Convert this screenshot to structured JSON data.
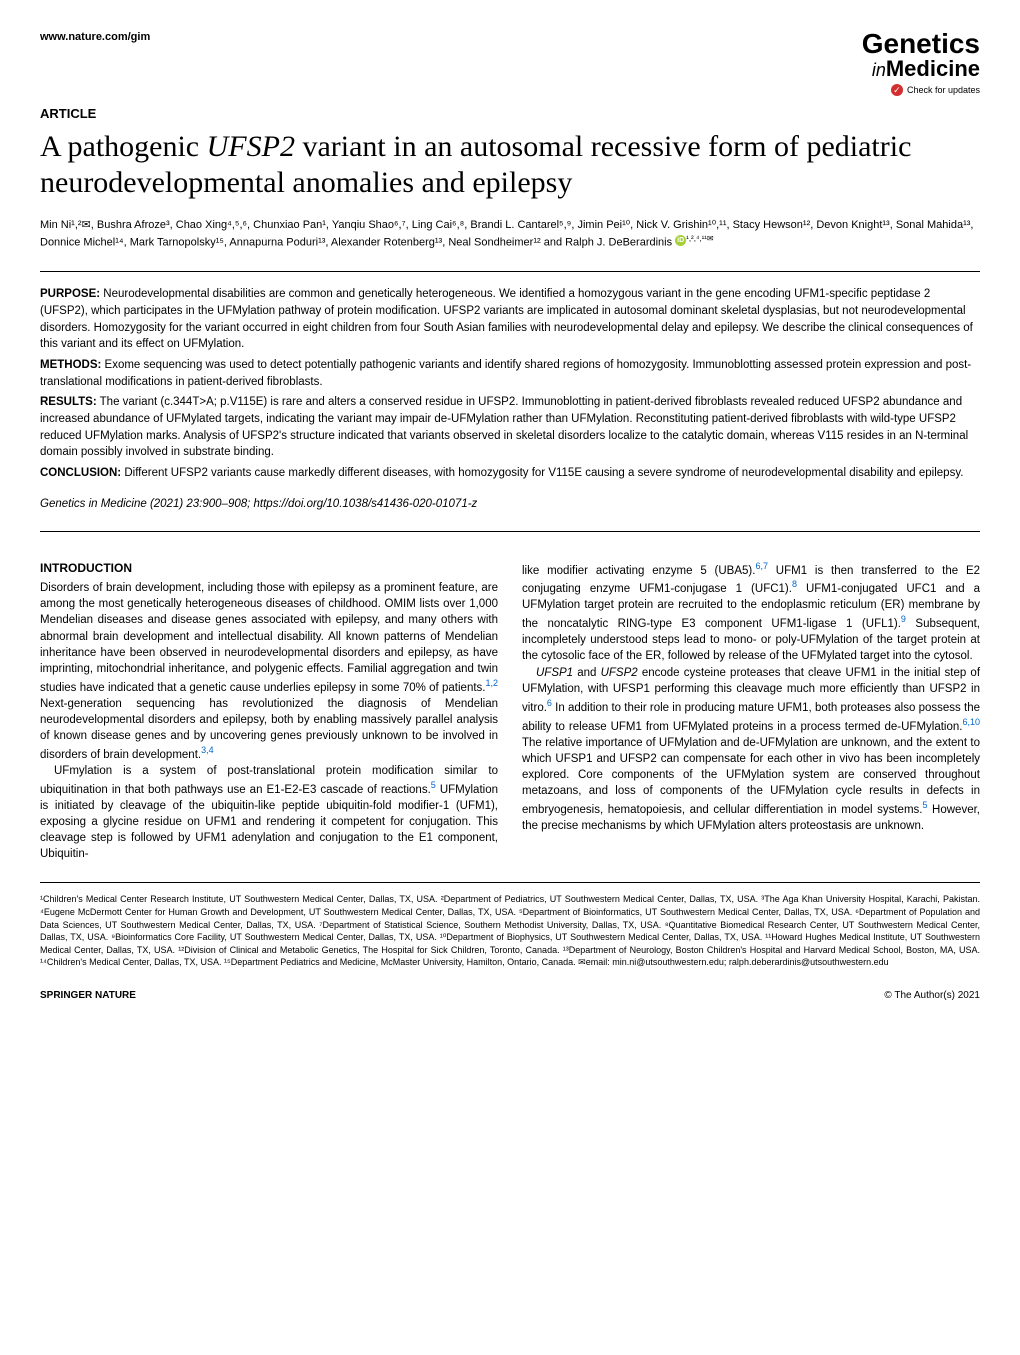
{
  "header": {
    "website": "www.nature.com/gim",
    "journal_line1": "Genetics",
    "journal_line2_in": "in",
    "journal_line2_med": "Medicine",
    "check_updates": "Check for updates"
  },
  "article": {
    "label": "ARTICLE",
    "title_pre": "A pathogenic ",
    "title_gene": "UFSP2",
    "title_post": " variant in an autosomal recessive form of pediatric neurodevelopmental anomalies and epilepsy"
  },
  "authors": {
    "line": "Min Ni¹,²✉, Bushra Afroze³, Chao Xing⁴,⁵,⁶, Chunxiao Pan¹, Yanqiu Shao⁶,⁷, Ling Cai⁶,⁸, Brandi L. Cantarel⁵,⁹, Jimin Pei¹⁰, Nick V. Grishin¹⁰,¹¹, Stacy Hewson¹², Devon Knight¹³, Sonal Mahida¹³, Donnice Michel¹⁴, Mark Tarnopolsky¹⁵, Annapurna Poduri¹³, Alexander Rotenberg¹³, Neal Sondheimer¹² and Ralph J. DeBerardinis"
  },
  "orcid_sup": "¹,²,⁴,¹¹✉",
  "abstract": {
    "purpose_label": "PURPOSE:",
    "purpose": " Neurodevelopmental disabilities are common and genetically heterogeneous. We identified a homozygous variant in the gene encoding UFM1-specific peptidase 2 (UFSP2), which participates in the UFMylation pathway of protein modification. UFSP2 variants are implicated in autosomal dominant skeletal dysplasias, but not neurodevelopmental disorders. Homozygosity for the variant occurred in eight children from four South Asian families with neurodevelopmental delay and epilepsy. We describe the clinical consequences of this variant and its effect on UFMylation.",
    "methods_label": "METHODS:",
    "methods": " Exome sequencing was used to detect potentially pathogenic variants and identify shared regions of homozygosity. Immunoblotting assessed protein expression and post-translational modifications in patient-derived fibroblasts.",
    "results_label": "RESULTS:",
    "results": " The variant (c.344T>A; p.V115E) is rare and alters a conserved residue in UFSP2. Immunoblotting in patient-derived fibroblasts revealed reduced UFSP2 abundance and increased abundance of UFMylated targets, indicating the variant may impair de-UFMylation rather than UFMylation. Reconstituting patient-derived fibroblasts with wild-type UFSP2 reduced UFMylation marks. Analysis of UFSP2's structure indicated that variants observed in skeletal disorders localize to the catalytic domain, whereas V115 resides in an N-terminal domain possibly involved in substrate binding.",
    "conclusion_label": "CONCLUSION:",
    "conclusion": " Different UFSP2 variants cause markedly different diseases, with homozygosity for V115E causing a severe syndrome of neurodevelopmental disability and epilepsy.",
    "citation": "Genetics in Medicine (2021) 23:900–908; https://doi.org/10.1038/s41436-020-01071-z"
  },
  "body": {
    "intro_heading": "INTRODUCTION",
    "col1_p1": "Disorders of brain development, including those with epilepsy as a prominent feature, are among the most genetically heterogeneous diseases of childhood. OMIM lists over 1,000 Mendelian diseases and disease genes associated with epilepsy, and many others with abnormal brain development and intellectual disability. All known patterns of Mendelian inheritance have been observed in neurodevelopmental disorders and epilepsy, as have imprinting, mitochondrial inheritance, and polygenic effects. Familial aggregation and twin studies have indicated that a genetic cause underlies epilepsy in some 70% of patients.",
    "col1_ref1": "1,2",
    "col1_p1b": " Next-generation sequencing has revolutionized the diagnosis of Mendelian neurodevelopmental disorders and epilepsy, both by enabling massively parallel analysis of known disease genes and by uncovering genes previously unknown to be involved in disorders of brain development.",
    "col1_ref2": "3,4",
    "col1_p2": "UFmylation is a system of post-translational protein modification similar to ubiquitination in that both pathways use an E1-E2-E3 cascade of reactions.",
    "col1_ref3": "5",
    "col1_p2b": " UFMylation is initiated by cleavage of the ubiquitin-like peptide ubiquitin-fold modifier-1 (UFM1), exposing a glycine residue on UFM1 and rendering it competent for conjugation. This cleavage step is followed by UFM1 adenylation and conjugation to the E1 component, Ubiquitin-",
    "col2_p1a": "like modifier activating enzyme 5 (UBA5).",
    "col2_ref1": "6,7",
    "col2_p1b": " UFM1 is then transferred to the E2 conjugating enzyme UFM1-conjugase 1 (UFC1).",
    "col2_ref2": "8",
    "col2_p1c": " UFM1-conjugated UFC1 and a UFMylation target protein are recruited to the endoplasmic reticulum (ER) membrane by the noncatalytic RING-type E3 component UFM1-ligase 1 (UFL1).",
    "col2_ref3": "9",
    "col2_p1d": " Subsequent, incompletely understood steps lead to mono- or poly-UFMylation of the target protein at the cytosolic face of the ER, followed by release of the UFMylated target into the cytosol.",
    "col2_p2a_pre": "",
    "col2_p2a": " encode cysteine proteases that cleave UFM1 in the initial step of UFMylation, with UFSP1 performing this cleavage much more efficiently than UFSP2 in vitro.",
    "col2_ref4": "6",
    "col2_p2b": " In addition to their role in producing mature UFM1, both proteases also possess the ability to release UFM1 from UFMylated proteins in a process termed de-UFMylation.",
    "col2_ref5": "6,10",
    "col2_p2c": " The relative importance of UFMylation and de-UFMylation are unknown, and the extent to which UFSP1 and UFSP2 can compensate for each other in vivo has been incompletely explored. Core components of the UFMylation system are conserved throughout metazoans, and loss of components of the UFMylation cycle results in defects in embryogenesis, hematopoiesis, and cellular differentiation in model systems.",
    "col2_ref6": "5",
    "col2_p2d": " However, the precise mechanisms by which UFMylation alters proteostasis are unknown."
  },
  "affiliations": {
    "text": "¹Children's Medical Center Research Institute, UT Southwestern Medical Center, Dallas, TX, USA. ²Department of Pediatrics, UT Southwestern Medical Center, Dallas, TX, USA. ³The Aga Khan University Hospital, Karachi, Pakistan. ⁴Eugene McDermott Center for Human Growth and Development, UT Southwestern Medical Center, Dallas, TX, USA. ⁵Department of Bioinformatics, UT Southwestern Medical Center, Dallas, TX, USA. ⁶Department of Population and Data Sciences, UT Southwestern Medical Center, Dallas, TX, USA. ⁷Department of Statistical Science, Southern Methodist University, Dallas, TX, USA. ⁸Quantitative Biomedical Research Center, UT Southwestern Medical Center, Dallas, TX, USA. ⁹Bioinformatics Core Facility, UT Southwestern Medical Center, Dallas, TX, USA. ¹⁰Department of Biophysics, UT Southwestern Medical Center, Dallas, TX, USA. ¹¹Howard Hughes Medical Institute, UT Southwestern Medical Center, Dallas, TX, USA. ¹²Division of Clinical and Metabolic Genetics, The Hospital for Sick Children, Toronto, Canada. ¹³Department of Neurology, Boston Children's Hospital and Harvard Medical School, Boston, MA, USA. ¹⁴Children's Medical Center, Dallas, TX, USA. ¹⁵Department Pediatrics and Medicine, McMaster University, Hamilton, Ontario, Canada. ✉email: min.ni@utsouthwestern.edu; ralph.deberardinis@utsouthwestern.edu"
  },
  "footer": {
    "publisher": "SPRINGER NATURE",
    "copyright": "© The Author(s) 2021"
  },
  "colors": {
    "link": "#0066cc",
    "orcid": "#a6ce39",
    "check_icon": "#d32f2f",
    "text": "#000000",
    "background": "#ffffff"
  },
  "typography": {
    "body_fontsize": 11.5,
    "title_fontsize": 30,
    "title_fontfamily": "Georgia, Times New Roman, serif",
    "abstract_fontsize": 11.5,
    "affiliations_fontsize": 9,
    "footer_fontsize": 10
  }
}
